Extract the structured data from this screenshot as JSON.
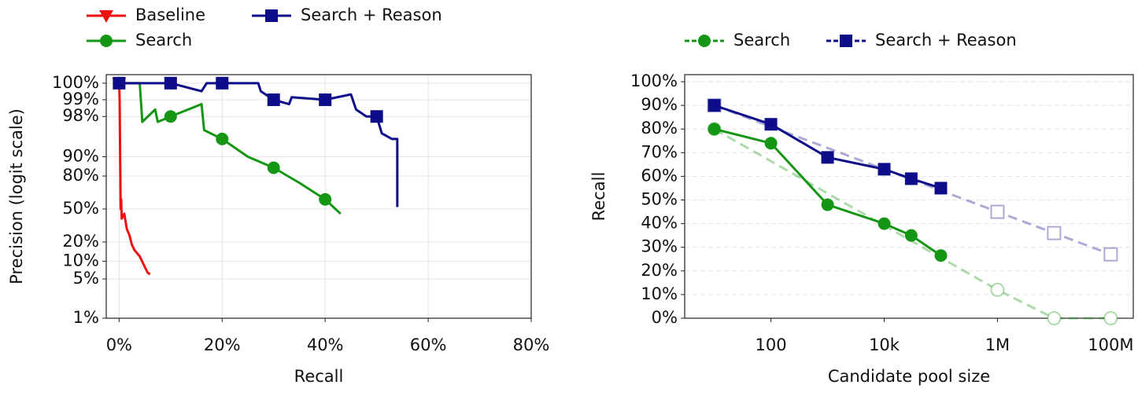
{
  "chart_data": [
    {
      "type": "line",
      "xlabel": "Recall",
      "ylabel": "Precision (logit scale)",
      "yscale": "logit",
      "grid": true,
      "legend": "upper-left",
      "xlim": [
        -2.5,
        80
      ],
      "xticks": [
        {
          "value": 0,
          "label": "0%"
        },
        {
          "value": 20,
          "label": "20%"
        },
        {
          "value": 40,
          "label": "40%"
        },
        {
          "value": 60,
          "label": "60%"
        },
        {
          "value": 80,
          "label": "80%"
        }
      ],
      "ylim": [
        1,
        99.65
      ],
      "yticks": [
        {
          "value": 1,
          "label": "1%"
        },
        {
          "value": 5,
          "label": "5%"
        },
        {
          "value": 10,
          "label": "10%"
        },
        {
          "value": 20,
          "label": "20%"
        },
        {
          "value": 50,
          "label": "50%"
        },
        {
          "value": 80,
          "label": "80%"
        },
        {
          "value": 90,
          "label": "90%"
        },
        {
          "value": 98,
          "label": "98%"
        },
        {
          "value": 99,
          "label": "99%"
        },
        {
          "value": 99.5,
          "label": "100%"
        }
      ],
      "series": [
        {
          "name": "Baseline",
          "color": "#ee1111",
          "marker": "v",
          "x": [
            0,
            0.1,
            0.2,
            0.3,
            0.4,
            0.5,
            1,
            1.5,
            2,
            2.5,
            3,
            4,
            5,
            5.5,
            6
          ],
          "values": [
            99.5,
            99,
            90,
            50,
            60,
            40,
            45,
            30,
            25,
            18,
            15,
            12,
            8,
            6.5,
            6
          ]
        },
        {
          "name": "Search",
          "color": "#159615",
          "marker": "o",
          "x": [
            0,
            4,
            4.5,
            7,
            7.5,
            10,
            16,
            16.5,
            20,
            25,
            30,
            35,
            40,
            42,
            43
          ],
          "values": [
            99.5,
            99.5,
            97.5,
            98.5,
            97.5,
            98,
            98.8,
            96.5,
            95,
            90,
            85,
            75,
            60,
            50,
            45
          ]
        },
        {
          "name": "Search + Reason",
          "color": "#0d0d8a",
          "marker": "s",
          "x": [
            0,
            10,
            16,
            17,
            20,
            27,
            27.5,
            30,
            33,
            33.5,
            40,
            45,
            46,
            48,
            50,
            51,
            53,
            54,
            54
          ],
          "values": [
            99.5,
            99.5,
            99.3,
            99.5,
            99.5,
            99.5,
            99.3,
            99,
            98.8,
            99.1,
            99,
            99.2,
            98.5,
            98,
            98,
            96,
            95,
            95,
            52
          ]
        }
      ]
    },
    {
      "type": "line",
      "xlabel": "Candidate pool size",
      "ylabel": "Recall",
      "xscale": "log",
      "grid": true,
      "legend": "top",
      "xlim": [
        3,
        250000000
      ],
      "xticks": [
        100,
        {
          "value": 10000,
          "label": "10k"
        },
        {
          "value": 1000000,
          "label": "1M"
        },
        {
          "value": 100000000,
          "label": "100M"
        }
      ],
      "ylim": [
        0,
        103
      ],
      "yticks": [
        {
          "value": 0,
          "label": "0%"
        },
        {
          "value": 10,
          "label": "10%"
        },
        {
          "value": 20,
          "label": "20%"
        },
        {
          "value": 30,
          "label": "30%"
        },
        {
          "value": 40,
          "label": "40%"
        },
        {
          "value": 50,
          "label": "50%"
        },
        {
          "value": 60,
          "label": "60%"
        },
        {
          "value": 70,
          "label": "70%"
        },
        {
          "value": 80,
          "label": "80%"
        },
        {
          "value": 90,
          "label": "90%"
        },
        {
          "value": 100,
          "label": "100%"
        }
      ],
      "series": [
        {
          "name": "Search",
          "color": "#159615",
          "marker": "o",
          "x": [
            10,
            100,
            1000,
            10000,
            30000,
            100000
          ],
          "values": [
            80,
            74,
            48,
            40,
            35,
            26.5
          ],
          "projection": {
            "x": [
              10,
              1000000,
              10000000,
              100000000
            ],
            "values": [
              80,
              12,
              0,
              0
            ]
          }
        },
        {
          "name": "Search + Reason",
          "color": "#0d0d8a",
          "marker": "s",
          "x": [
            10,
            100,
            1000,
            10000,
            30000,
            100000
          ],
          "values": [
            90,
            82,
            68,
            63,
            59,
            55
          ],
          "projection": {
            "x": [
              10,
              1000000,
              10000000,
              100000000
            ],
            "values": [
              90,
              45,
              36,
              27
            ]
          }
        }
      ]
    }
  ]
}
